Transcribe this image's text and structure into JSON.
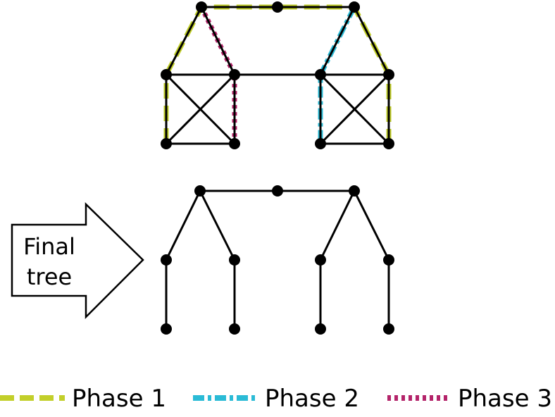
{
  "arrow_label": [
    "Final",
    "tree"
  ],
  "legend": [
    {
      "label": "Phase 1",
      "color": "#c2cf2a",
      "style": "dash"
    },
    {
      "label": "Phase 2",
      "color": "#2bbbd6",
      "style": "dashdot"
    },
    {
      "label": "Phase 3",
      "color": "#b4246a",
      "style": "dot"
    }
  ]
}
